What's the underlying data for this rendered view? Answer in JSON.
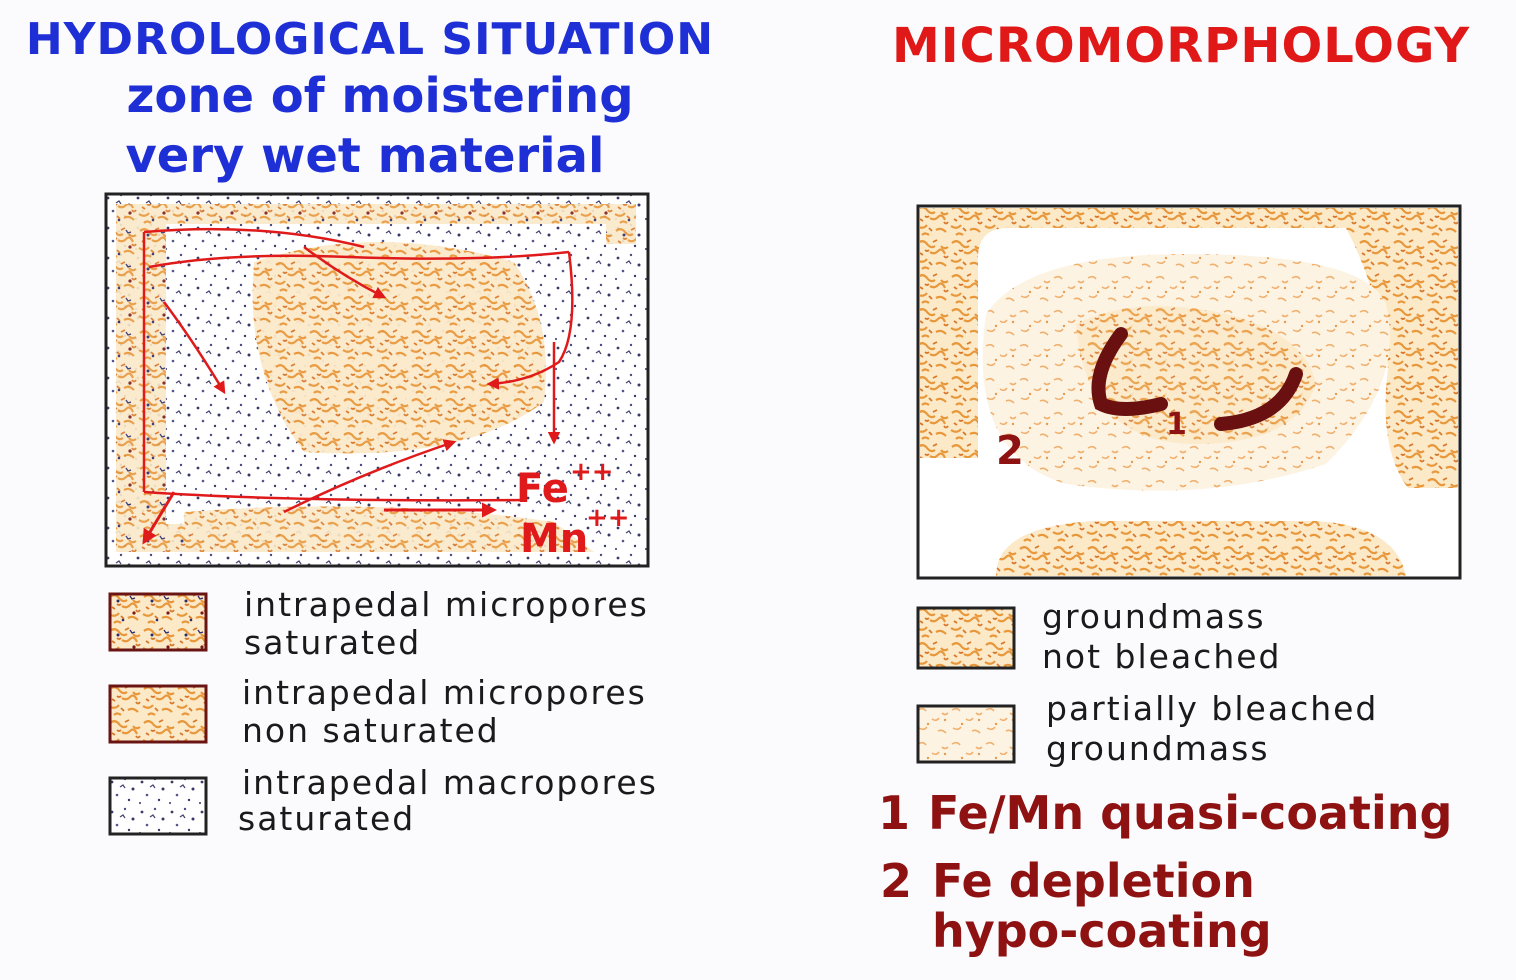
{
  "left": {
    "title": "HYDROLOGICAL SITUATION",
    "subtitle1": "zone of moistering",
    "subtitle2": "very wet material",
    "ion_fe": "Fe",
    "ion_fe_charge": "++",
    "ion_mn": "Mn",
    "ion_mn_charge": "++",
    "legend": [
      {
        "line1": "intrapedal micropores",
        "line2": "saturated"
      },
      {
        "line1": "intrapedal micropores",
        "line2": "non saturated"
      },
      {
        "line1": "intrapedal macropores",
        "line2": "saturated"
      }
    ]
  },
  "right": {
    "title": "MICROMORPHOLOGY",
    "label_1": "1",
    "label_2": "2",
    "legend": [
      {
        "line1": "groundmass",
        "line2": "not bleached"
      },
      {
        "line1": "partially bleached",
        "line2": "groundmass"
      }
    ],
    "notes": [
      {
        "num": "1",
        "text": "Fe/Mn quasi-coating"
      },
      {
        "num": "2",
        "text": "Fe depletion",
        "text2": "hypo-coating"
      }
    ]
  },
  "colors": {
    "title_left": "#1f2fd6",
    "title_right": "#e01818",
    "arrows": "#e01a1a",
    "orange_texture": "#e8973a",
    "coating": "#6b1010",
    "notes": "#8f1212"
  }
}
